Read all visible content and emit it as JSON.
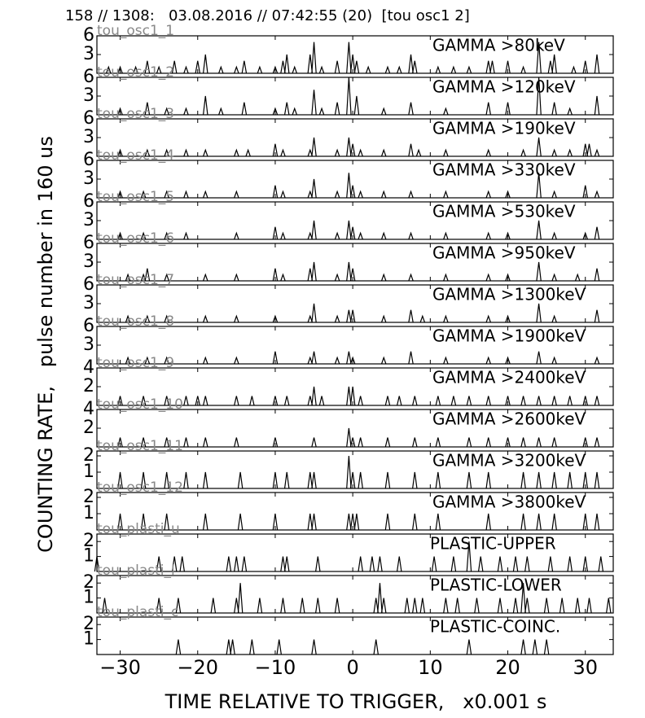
{
  "title": "158 // 1308:   03.08.2016 // 07:42:55 (20)  [tou osc1 2]",
  "y_label": "COUNTING RATE,   pulse number in 160 us",
  "x_axis": {
    "label": "TIME RELATIVE TO TRIGGER,   x0.001 s",
    "lim": [
      -33,
      33.6
    ],
    "ticks": [
      {
        "value": -30,
        "label": "−30"
      },
      {
        "value": -20,
        "label": "−20"
      },
      {
        "value": -10,
        "label": "−10"
      },
      0,
      10,
      20,
      30
    ]
  },
  "chart_data": [
    {
      "type": "spike",
      "name": "tou_osc1_1",
      "label": "GAMMA >80keV",
      "color": "#000000",
      "ylim": [
        0,
        6
      ],
      "yticks": [
        3,
        6
      ],
      "x": [
        -31.5,
        -30,
        -28,
        -26.5,
        -25,
        -23,
        -21.5,
        -20,
        -19,
        -17,
        -15,
        -14,
        -12,
        -10,
        -9,
        -8.5,
        -7.5,
        -5.5,
        -5,
        -4,
        -2,
        -0.5,
        0,
        0.5,
        2,
        4.5,
        6,
        7.5,
        8,
        11,
        13,
        15,
        17.5,
        18,
        20,
        22,
        24,
        25.5,
        26,
        28.5,
        30,
        31.5
      ],
      "values": [
        1,
        1,
        1,
        2,
        1,
        2,
        1,
        2,
        3,
        1,
        1,
        2,
        1,
        1,
        2,
        3,
        1,
        3,
        5,
        1,
        2,
        5,
        3,
        2,
        1,
        1,
        1,
        3,
        2,
        1,
        1,
        1,
        2,
        2,
        2,
        1,
        5,
        2,
        3,
        1,
        2,
        3
      ]
    },
    {
      "type": "spike",
      "name": "tou_osc1_2",
      "label": "GAMMA >120keV",
      "color": "#000000",
      "ylim": [
        0,
        6
      ],
      "yticks": [
        3,
        6
      ],
      "x": [
        -30,
        -26.5,
        -24,
        -21.5,
        -19,
        -17,
        -14,
        -10,
        -8.5,
        -7.5,
        -5,
        -4,
        -2,
        -0.5,
        0.5,
        4,
        7.5,
        12,
        17.5,
        20,
        24,
        26,
        28,
        31.5
      ],
      "values": [
        1,
        2,
        1,
        1,
        3,
        1,
        2,
        1,
        2,
        1,
        4,
        1,
        2,
        6,
        3,
        1,
        2,
        1,
        2,
        2,
        6,
        2,
        1,
        3
      ]
    },
    {
      "type": "spike",
      "name": "tou_osc1_3",
      "label": "GAMMA >190keV",
      "color": "#000000",
      "ylim": [
        0,
        6
      ],
      "yticks": [
        3,
        6
      ],
      "x": [
        -30,
        -26.5,
        -24,
        -21.5,
        -19,
        -15,
        -13.5,
        -10,
        -9,
        -5.5,
        -5,
        -2,
        -0.5,
        0,
        1,
        4,
        7.5,
        8.5,
        12,
        17.5,
        22,
        24,
        26,
        28,
        30,
        30.5,
        31.5
      ],
      "values": [
        1,
        1,
        1,
        1,
        1,
        1,
        1,
        2,
        1,
        1,
        3,
        1,
        3,
        2,
        1,
        1,
        2,
        1,
        1,
        1,
        1,
        3,
        1,
        1,
        2,
        2,
        1
      ]
    },
    {
      "type": "spike",
      "name": "tou_osc1_4",
      "label": "GAMMA >330keV",
      "color": "#000000",
      "ylim": [
        0,
        6
      ],
      "yticks": [
        3,
        6
      ],
      "x": [
        -30,
        -27,
        -24,
        -21.5,
        -19,
        -15,
        -10,
        -9,
        -5.5,
        -5,
        -2,
        -0.5,
        0,
        1,
        4,
        7.5,
        12,
        17.5,
        20,
        24,
        26,
        30,
        31.5
      ],
      "values": [
        1,
        1,
        1,
        1,
        1,
        1,
        2,
        1,
        1,
        3,
        1,
        4,
        2,
        1,
        1,
        1,
        1,
        1,
        1,
        4,
        1,
        2,
        1
      ]
    },
    {
      "type": "spike",
      "name": "tou_osc1_5",
      "label": "GAMMA >530keV",
      "color": "#000000",
      "ylim": [
        0,
        6
      ],
      "yticks": [
        3,
        6
      ],
      "x": [
        -30,
        -27,
        -24,
        -21.5,
        -15,
        -10,
        -9,
        -5.5,
        -5,
        -2,
        -0.5,
        0,
        1,
        4,
        7.5,
        12,
        17.5,
        20,
        24,
        26,
        30,
        31.5
      ],
      "values": [
        1,
        1,
        1,
        1,
        1,
        2,
        1,
        1,
        3,
        1,
        3,
        2,
        1,
        1,
        1,
        1,
        1,
        1,
        3,
        1,
        1,
        2
      ]
    },
    {
      "type": "spike",
      "name": "tou_osc1_6",
      "label": "GAMMA >950keV",
      "color": "#000000",
      "ylim": [
        0,
        6
      ],
      "yticks": [
        3,
        6
      ],
      "x": [
        -29,
        -27,
        -26.5,
        -24,
        -19,
        -15,
        -10,
        -9,
        -5.5,
        -5,
        -2,
        -0.5,
        0,
        4,
        7.5,
        12,
        17.5,
        20,
        24,
        26,
        29,
        31.5
      ],
      "values": [
        1,
        1,
        2,
        1,
        1,
        1,
        2,
        1,
        2,
        3,
        1,
        3,
        2,
        1,
        1,
        1,
        1,
        1,
        3,
        1,
        1,
        2
      ]
    },
    {
      "type": "spike",
      "name": "tou_osc1_7",
      "label": "GAMMA >1300keV",
      "color": "#000000",
      "ylim": [
        0,
        6
      ],
      "yticks": [
        3,
        6
      ],
      "x": [
        -29,
        -26.5,
        -24,
        -19,
        -15,
        -10,
        -5.5,
        -5,
        -2,
        -0.5,
        0,
        4,
        7.5,
        9,
        12,
        17.5,
        20,
        24,
        26,
        31.5
      ],
      "values": [
        1,
        1,
        1,
        1,
        1,
        1,
        1,
        3,
        1,
        2,
        2,
        1,
        2,
        1,
        1,
        1,
        1,
        3,
        1,
        2
      ]
    },
    {
      "type": "spike",
      "name": "tou_osc1_8",
      "label": "GAMMA >1900keV",
      "color": "#000000",
      "ylim": [
        0,
        6
      ],
      "yticks": [
        3,
        6
      ],
      "x": [
        -29,
        -26.5,
        -24,
        -19,
        -15,
        -10,
        -5.5,
        -5,
        -2,
        -0.5,
        0,
        4,
        7.5,
        12,
        17.5,
        20,
        24,
        26,
        31.5
      ],
      "values": [
        1,
        1,
        1,
        1,
        1,
        2,
        1,
        2,
        1,
        2,
        1,
        1,
        2,
        1,
        1,
        1,
        2,
        1,
        1
      ]
    },
    {
      "type": "spike",
      "name": "tou_osc1_9",
      "label": "GAMMA >2400keV",
      "color": "#000000",
      "ylim": [
        0,
        4
      ],
      "yticks": [
        2,
        4
      ],
      "x": [
        -30,
        -27,
        -24,
        -21.5,
        -20,
        -19,
        -15,
        -13,
        -10,
        -8.5,
        -5.5,
        -5,
        -4,
        -0.5,
        0,
        1,
        4.5,
        6,
        8,
        11,
        13,
        15,
        17.5,
        20,
        22,
        24,
        26,
        28,
        30,
        31.5
      ],
      "values": [
        1,
        1,
        1,
        1,
        1,
        1,
        1,
        1,
        1,
        1,
        1,
        2,
        1,
        2,
        2,
        1,
        1,
        1,
        1,
        1,
        1,
        1,
        1,
        1,
        1,
        1,
        1,
        1,
        1,
        1
      ]
    },
    {
      "type": "spike",
      "name": "tou_osc1_10",
      "label": "GAMMA >2600keV",
      "color": "#000000",
      "ylim": [
        0,
        4
      ],
      "yticks": [
        2,
        4
      ],
      "x": [
        -30,
        -27,
        -24,
        -21.5,
        -19,
        -15,
        -10,
        -5,
        -0.5,
        0,
        1,
        4.5,
        8,
        11,
        15,
        17.5,
        20,
        22,
        24,
        26,
        30,
        31.5
      ],
      "values": [
        1,
        1,
        1,
        1,
        1,
        1,
        1,
        1,
        2,
        1,
        1,
        1,
        1,
        1,
        1,
        1,
        1,
        1,
        1,
        1,
        1,
        1
      ]
    },
    {
      "type": "spike",
      "name": "tou_osc1_11",
      "label": "GAMMA >3200keV",
      "color": "#000000",
      "ylim": [
        0,
        2.3
      ],
      "yticks": [
        1,
        2
      ],
      "x": [
        -30,
        -27,
        -24,
        -21.5,
        -19,
        -14.5,
        -10,
        -8.5,
        -5.5,
        -5,
        -0.5,
        0,
        1,
        4.5,
        8,
        11,
        15,
        17.5,
        22,
        24,
        26,
        28,
        30,
        31.5
      ],
      "values": [
        1,
        1,
        1,
        1,
        1,
        1,
        1,
        1,
        1,
        1,
        2,
        1,
        1,
        1,
        1,
        1,
        1,
        1,
        1,
        1,
        1,
        1,
        1,
        1
      ]
    },
    {
      "type": "spike",
      "name": "tou_osc1_12",
      "label": "GAMMA >3800keV",
      "color": "#000000",
      "ylim": [
        0,
        2.3
      ],
      "yticks": [
        1,
        2
      ],
      "x": [
        -30,
        -27,
        -24,
        -19,
        -14.5,
        -10,
        -5.5,
        -5,
        -0.5,
        0,
        0.5,
        4.5,
        8,
        11,
        17.5,
        22,
        24,
        26,
        30,
        31.5
      ],
      "values": [
        1,
        1,
        1,
        1,
        1,
        1,
        1,
        1,
        1,
        1,
        1,
        1,
        1,
        1,
        1,
        1,
        1,
        1,
        1,
        1
      ]
    },
    {
      "type": "spike",
      "name": "tou_plasti_u",
      "label": "PLASTIC-UPPER",
      "color": "#000000",
      "ylim": [
        0,
        2.5
      ],
      "yticks": [
        1,
        2
      ],
      "x": [
        -33,
        -25,
        -23,
        -22,
        -16,
        -15,
        -14,
        -9,
        -8.5,
        -4.5,
        1,
        2.5,
        3.5,
        6,
        10.5,
        13,
        15,
        16.5,
        19,
        21,
        22.5,
        25.5,
        28,
        30,
        32
      ],
      "values": [
        1,
        1,
        1,
        1,
        1,
        1,
        1,
        1,
        1,
        1,
        1,
        1,
        1,
        1,
        1,
        1,
        2,
        1,
        1,
        1,
        1,
        1,
        1,
        1,
        1
      ]
    },
    {
      "type": "spike",
      "name": "tou_plasti_l",
      "label": "PLASTIC-LOWER",
      "color": "#000000",
      "ylim": [
        0,
        2.5
      ],
      "yticks": [
        1,
        2
      ],
      "x": [
        -32,
        -25,
        -22.5,
        -18,
        -15,
        -14.5,
        -12,
        -9,
        -6.5,
        -4.5,
        -2,
        3,
        3.5,
        4,
        7,
        8,
        9,
        12,
        13.5,
        16,
        19,
        21,
        22,
        22.5,
        25,
        27,
        29,
        30.5,
        33
      ],
      "values": [
        1,
        1,
        1,
        1,
        1,
        2,
        1,
        1,
        1,
        1,
        1,
        1,
        2,
        1,
        1,
        1,
        1,
        1,
        1,
        1,
        1,
        1,
        2,
        1,
        1,
        1,
        1,
        1,
        1
      ]
    },
    {
      "type": "spike",
      "name": "tou_plasti_c",
      "label": "PLASTIC-COINC.",
      "color": "#000000",
      "ylim": [
        0,
        2.5
      ],
      "yticks": [
        1,
        2
      ],
      "x": [
        -22.5,
        -16,
        -15.5,
        -13,
        -9.5,
        -5,
        3,
        15,
        22,
        23.5,
        25
      ],
      "values": [
        1,
        1,
        1,
        1,
        1,
        1,
        1,
        1,
        1,
        1,
        1
      ]
    }
  ]
}
